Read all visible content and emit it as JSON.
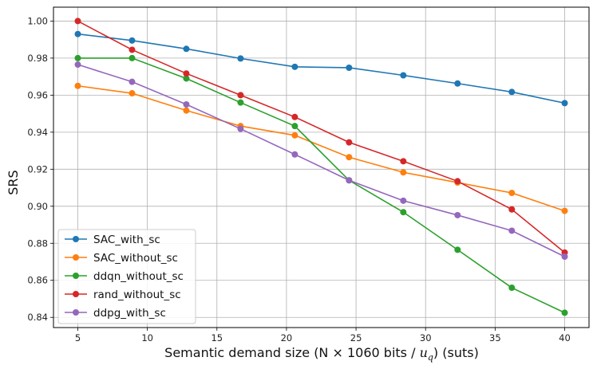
{
  "chart_data": {
    "type": "line",
    "title": "",
    "xlabel": "Semantic demand size (N × 1060 bits / ",
    "xlabel_math": "u",
    "xlabel_math_sub": "q",
    "xlabel_suffix": ") (suts)",
    "ylabel": "SRS",
    "xlim": [
      3.25,
      41.75
    ],
    "ylim": [
      0.8345,
      1.0075
    ],
    "xticks": [
      5,
      10,
      15,
      20,
      25,
      30,
      35,
      40
    ],
    "yticks": [
      0.84,
      0.86,
      0.88,
      0.9,
      0.92,
      0.94,
      0.96,
      0.98,
      1.0
    ],
    "ytick_labels": [
      "0.84",
      "0.86",
      "0.88",
      "0.90",
      "0.92",
      "0.94",
      "0.96",
      "0.98",
      "1.00"
    ],
    "grid": true,
    "legend_position": "lower-left",
    "x": [
      5,
      8.9,
      12.8,
      16.7,
      20.6,
      24.5,
      28.4,
      32.3,
      36.2,
      40
    ],
    "series": [
      {
        "name": "SAC_with_sc",
        "color": "#1f77b4",
        "values": [
          0.993,
          0.9895,
          0.985,
          0.9798,
          0.9753,
          0.9748,
          0.9707,
          0.9663,
          0.9617,
          0.9557
        ]
      },
      {
        "name": "SAC_without_sc",
        "color": "#ff7f0e",
        "values": [
          0.965,
          0.961,
          0.9517,
          0.9433,
          0.9383,
          0.9265,
          0.9183,
          0.9128,
          0.9072,
          0.8975
        ]
      },
      {
        "name": "ddqn_without_sc",
        "color": "#2ca02c",
        "values": [
          0.98,
          0.98,
          0.969,
          0.956,
          0.9433,
          0.914,
          0.8968,
          0.8765,
          0.856,
          0.8425
        ]
      },
      {
        "name": "rand_without_sc",
        "color": "#d62728",
        "values": [
          1.0,
          0.9845,
          0.9717,
          0.96,
          0.9482,
          0.9345,
          0.9243,
          0.9135,
          0.8983,
          0.875
        ]
      },
      {
        "name": "ddpg_with_sc",
        "color": "#9467bd",
        "values": [
          0.9765,
          0.9672,
          0.955,
          0.9418,
          0.928,
          0.914,
          0.903,
          0.8952,
          0.8868,
          0.8728
        ]
      }
    ]
  }
}
